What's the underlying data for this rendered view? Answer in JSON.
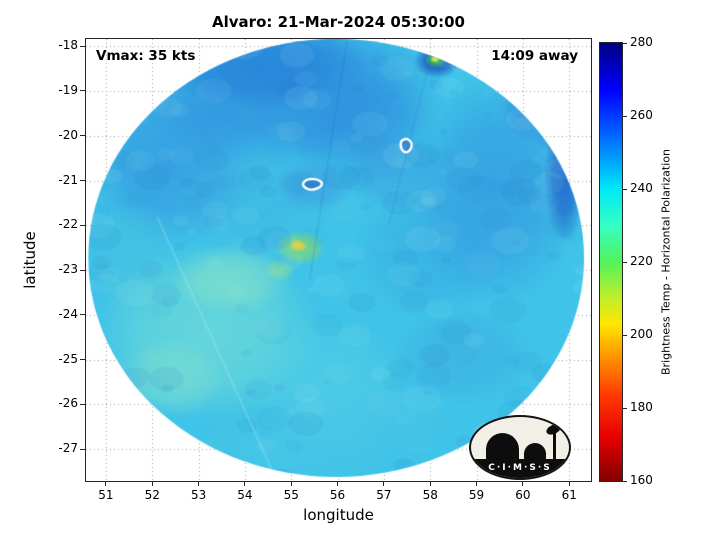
{
  "figure": {
    "title": "Alvaro: 21-Mar-2024 05:30:00",
    "annotation_left": "Vmax: 35 kts",
    "annotation_right": "14:09 away",
    "xlabel": "longitude",
    "ylabel": "latitude"
  },
  "logo": {
    "name": "CIMSS",
    "text": "C·I·M·S·S"
  },
  "chart_data": {
    "type": "heatmap",
    "title": "Alvaro: 21-Mar-2024 05:30:00",
    "storm": {
      "name": "Alvaro",
      "datetime": "21-Mar-2024 05:30:00",
      "vmax": "35 kts",
      "time_offset": "14:09 away"
    },
    "xlabel": "longitude",
    "ylabel": "latitude",
    "xlim": [
      50.57,
      61.47
    ],
    "ylim": [
      -27.71,
      -17.84
    ],
    "xticks": [
      51,
      52,
      53,
      54,
      55,
      56,
      57,
      58,
      59,
      60,
      61
    ],
    "yticks": [
      -18,
      -19,
      -20,
      -21,
      -22,
      -23,
      -24,
      -25,
      -26,
      -27
    ],
    "grid": true,
    "colorbar": {
      "label": "Brightness Temp - Horizontal Polarization",
      "min": 160,
      "max": 280,
      "ticks": [
        160,
        180,
        200,
        220,
        240,
        260,
        280
      ],
      "colormap": "jet reversed (low=dark red, high=dark blue)",
      "gradient": [
        {
          "value": 280,
          "color": "#000083"
        },
        {
          "value": 267,
          "color": "#0000ff"
        },
        {
          "value": 253,
          "color": "#0075ff"
        },
        {
          "value": 240,
          "color": "#00e8f8"
        },
        {
          "value": 230,
          "color": "#35ffc2"
        },
        {
          "value": 220,
          "color": "#52f25a"
        },
        {
          "value": 211,
          "color": "#b8ef2f"
        },
        {
          "value": 203,
          "color": "#ffe600"
        },
        {
          "value": 194,
          "color": "#ff9400"
        },
        {
          "value": 184,
          "color": "#ff3c00"
        },
        {
          "value": 172,
          "color": "#e80000"
        },
        {
          "value": 160,
          "color": "#800000"
        }
      ]
    },
    "swath": {
      "center_lon": 55.97,
      "center_lat": -22.73,
      "radius_lon_deg": 5.35,
      "radius_lat_deg": 4.89,
      "base_color": "#3fc3e8",
      "base_value_k": 245
    },
    "features": [
      {
        "lon": 55.0,
        "lat": -19.0,
        "rx": 3.4,
        "ry": 1.8,
        "color": "#2b85dc",
        "alpha": 0.75
      },
      {
        "lon": 52.4,
        "lat": -20.6,
        "rx": 1.9,
        "ry": 1.9,
        "color": "#2f8ade",
        "alpha": 0.6
      },
      {
        "lon": 54.3,
        "lat": -18.4,
        "rx": 2.4,
        "ry": 1.0,
        "color": "#2176d6",
        "alpha": 0.55
      },
      {
        "lon": 56.6,
        "lat": -19.8,
        "rx": 1.6,
        "ry": 1.3,
        "color": "#2e8cdf",
        "alpha": 0.5
      },
      {
        "lon": 59.4,
        "lat": -21.2,
        "rx": 1.9,
        "ry": 2.6,
        "color": "#2f8ade",
        "alpha": 0.55
      },
      {
        "lon": 58.0,
        "lat": -22.6,
        "rx": 1.7,
        "ry": 1.5,
        "color": "#35a2e2",
        "alpha": 0.45
      },
      {
        "lon": 54.0,
        "lat": -21.4,
        "rx": 2.1,
        "ry": 1.2,
        "color": "#41b2e2",
        "alpha": 0.45
      },
      {
        "lon": 51.6,
        "lat": -22.8,
        "rx": 1.0,
        "ry": 1.4,
        "color": "#48c0e0",
        "alpha": 0.5
      },
      {
        "lon": 53.2,
        "lat": -24.4,
        "rx": 2.5,
        "ry": 2.0,
        "color": "#74ded6",
        "alpha": 0.7
      },
      {
        "lon": 53.7,
        "lat": -23.2,
        "rx": 1.3,
        "ry": 0.8,
        "color": "#8fe6c2",
        "alpha": 0.55
      },
      {
        "lon": 52.4,
        "lat": -25.4,
        "rx": 1.2,
        "ry": 0.9,
        "color": "#86e2ca",
        "alpha": 0.5
      },
      {
        "lon": 55.7,
        "lat": -25.5,
        "rx": 1.9,
        "ry": 1.5,
        "color": "#5ad2e4",
        "alpha": 0.5
      },
      {
        "lon": 56.9,
        "lat": -26.3,
        "rx": 1.6,
        "ry": 0.9,
        "color": "#4cc6e6",
        "alpha": 0.45
      },
      {
        "lon": 58.7,
        "lat": -24.9,
        "rx": 1.5,
        "ry": 1.1,
        "color": "#3ea6e0",
        "alpha": 0.45
      },
      {
        "lon": 55.0,
        "lat": -27.0,
        "rx": 2.4,
        "ry": 0.9,
        "color": "#4fcae6",
        "alpha": 0.45
      },
      {
        "lon": 60.3,
        "lat": -19.3,
        "rx": 0.8,
        "ry": 0.9,
        "color": "#2d80da",
        "alpha": 0.5
      },
      {
        "lon": 60.9,
        "lat": -20.9,
        "rx": 0.45,
        "ry": 1.5,
        "color": "#1850c5",
        "alpha": 0.7
      },
      {
        "lon": 57.2,
        "lat": -20.8,
        "rx": 1.1,
        "ry": 0.9,
        "color": "#3a9ae0",
        "alpha": 0.5
      },
      {
        "lon": 55.5,
        "lat": -21.1,
        "rx": 0.9,
        "ry": 0.6,
        "color": "#3b92de",
        "alpha": 0.5
      },
      {
        "lon": 54.75,
        "lat": -23.0,
        "rx": 0.35,
        "ry": 0.25,
        "color": "#99e08e",
        "alpha": 0.55
      },
      {
        "lon": 55.2,
        "lat": -22.5,
        "rx": 0.55,
        "ry": 0.4,
        "color": "#7fd877",
        "alpha": 0.85
      },
      {
        "lon": 55.15,
        "lat": -22.45,
        "rx": 0.2,
        "ry": 0.15,
        "color": "#ead23e",
        "alpha": 0.95
      },
      {
        "lon": 58.15,
        "lat": -18.32,
        "rx": 0.5,
        "ry": 0.4,
        "color": "#1b4bbc",
        "alpha": 0.85
      },
      {
        "lon": 58.12,
        "lat": -18.3,
        "rx": 0.24,
        "ry": 0.18,
        "color": "#3cbf52",
        "alpha": 0.95
      },
      {
        "lon": 58.1,
        "lat": -18.29,
        "rx": 0.1,
        "ry": 0.08,
        "color": "#f2ea3d",
        "alpha": 0.95
      }
    ],
    "seams": [
      {
        "from": [
          56.2,
          -17.9
        ],
        "to": [
          55.4,
          -23.2
        ],
        "color": "rgba(20,70,150,0.10)",
        "width": 2
      },
      {
        "from": [
          58.0,
          -18.3
        ],
        "to": [
          57.1,
          -22.0
        ],
        "color": "rgba(20,70,150,0.08)",
        "width": 2
      },
      {
        "from": [
          52.1,
          -21.8
        ],
        "to": [
          54.6,
          -27.5
        ],
        "color": "rgba(235,252,252,0.18)",
        "width": 2
      }
    ],
    "contours": [
      {
        "center_lon": 55.47,
        "center_lat": -21.08,
        "color": "#ffffff",
        "fill": "rgba(25,70,165,0.35)",
        "points": [
          [
            -0.23,
            0.0
          ],
          [
            -0.16,
            0.09
          ],
          [
            -0.04,
            0.12
          ],
          [
            0.1,
            0.1
          ],
          [
            0.2,
            0.04
          ],
          [
            0.18,
            -0.05
          ],
          [
            0.07,
            -0.11
          ],
          [
            -0.06,
            -0.13
          ],
          [
            -0.18,
            -0.08
          ]
        ]
      },
      {
        "center_lon": 57.48,
        "center_lat": -20.23,
        "color": "#ffffff",
        "fill": "rgba(25,70,165,0.35)",
        "points": [
          [
            -0.11,
            0.12
          ],
          [
            0.0,
            0.17
          ],
          [
            0.09,
            0.12
          ],
          [
            0.13,
            0.02
          ],
          [
            0.09,
            -0.09
          ],
          [
            0.0,
            -0.15
          ],
          [
            -0.09,
            -0.1
          ],
          [
            -0.12,
            0.01
          ]
        ]
      }
    ]
  }
}
